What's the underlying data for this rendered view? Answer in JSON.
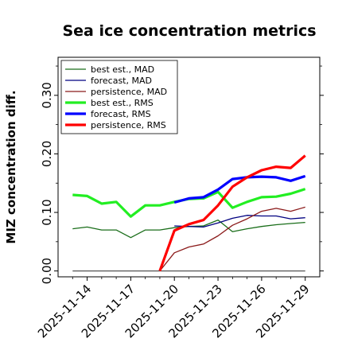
{
  "chart_data": {
    "type": "line",
    "title": "Sea ice concentration metrics",
    "xlabel": "",
    "ylabel": "MIZ concentration diff.",
    "ylim": [
      -0.01,
      0.365
    ],
    "yticks": [
      0.0,
      0.1,
      0.2,
      0.3
    ],
    "ytick_labels": [
      "0.00",
      "0.10",
      "0.20",
      "0.30"
    ],
    "xticks": [
      "2025-11-14",
      "2025-11-17",
      "2025-11-20",
      "2025-11-23",
      "2025-11-26",
      "2025-11-29"
    ],
    "highlighted_xtick": "2025-11-20",
    "highlight_color": "#228b22",
    "legend_position": "upper-left",
    "grid": false,
    "zero_line": {
      "y": 0.0,
      "color": "#555555"
    },
    "series": [
      {
        "name": "best est., MAD",
        "color": "#1a6e1a",
        "width": 1.3,
        "x": [
          "2025-11-13",
          "2025-11-14",
          "2025-11-15",
          "2025-11-16",
          "2025-11-17",
          "2025-11-18",
          "2025-11-19",
          "2025-11-20",
          "2025-11-21",
          "2025-11-22",
          "2025-11-23",
          "2025-11-24",
          "2025-11-25",
          "2025-11-26",
          "2025-11-27",
          "2025-11-28",
          "2025-11-29"
        ],
        "values": [
          0.072,
          0.075,
          0.07,
          0.07,
          0.057,
          0.07,
          0.07,
          0.074,
          0.076,
          0.077,
          0.087,
          0.067,
          0.072,
          0.076,
          0.079,
          0.081,
          0.083
        ]
      },
      {
        "name": "forecast,  MAD",
        "color": "#000080",
        "width": 1.3,
        "x": [
          "2025-11-20",
          "2025-11-21",
          "2025-11-22",
          "2025-11-23",
          "2025-11-24",
          "2025-11-25",
          "2025-11-26",
          "2025-11-27",
          "2025-11-28",
          "2025-11-29"
        ],
        "values": [
          0.077,
          0.076,
          0.075,
          0.082,
          0.09,
          0.095,
          0.094,
          0.094,
          0.089,
          0.091
        ]
      },
      {
        "name": "persistence, MAD",
        "color": "#8b1a1a",
        "width": 1.3,
        "x": [
          "2025-11-19",
          "2025-11-20",
          "2025-11-21",
          "2025-11-22",
          "2025-11-23",
          "2025-11-24",
          "2025-11-25",
          "2025-11-26",
          "2025-11-27",
          "2025-11-28",
          "2025-11-29"
        ],
        "values": [
          0.0,
          0.031,
          0.041,
          0.046,
          0.06,
          0.078,
          0.089,
          0.102,
          0.107,
          0.102,
          0.109
        ]
      },
      {
        "name": "best est., RMS",
        "color": "#22ee22",
        "width": 3.2,
        "x": [
          "2025-11-13",
          "2025-11-14",
          "2025-11-15",
          "2025-11-16",
          "2025-11-17",
          "2025-11-18",
          "2025-11-19",
          "2025-11-20",
          "2025-11-21",
          "2025-11-22",
          "2025-11-23",
          "2025-11-24",
          "2025-11-25",
          "2025-11-26",
          "2025-11-27",
          "2025-11-28",
          "2025-11-29"
        ],
        "values": [
          0.13,
          0.128,
          0.115,
          0.118,
          0.093,
          0.112,
          0.112,
          0.118,
          0.123,
          0.124,
          0.135,
          0.108,
          0.118,
          0.126,
          0.127,
          0.132,
          0.14
        ]
      },
      {
        "name": "forecast,  RMS",
        "color": "#0000ff",
        "width": 3.2,
        "x": [
          "2025-11-20",
          "2025-11-21",
          "2025-11-22",
          "2025-11-23",
          "2025-11-24",
          "2025-11-25",
          "2025-11-26",
          "2025-11-27",
          "2025-11-28",
          "2025-11-29"
        ],
        "values": [
          0.117,
          0.124,
          0.126,
          0.139,
          0.157,
          0.16,
          0.161,
          0.16,
          0.154,
          0.162
        ]
      },
      {
        "name": "persistence, RMS",
        "color": "#ff0000",
        "width": 3.2,
        "x": [
          "2025-11-19",
          "2025-11-20",
          "2025-11-21",
          "2025-11-22",
          "2025-11-23",
          "2025-11-24",
          "2025-11-25",
          "2025-11-26",
          "2025-11-27",
          "2025-11-28",
          "2025-11-29"
        ],
        "values": [
          0.0,
          0.069,
          0.08,
          0.087,
          0.112,
          0.144,
          0.16,
          0.172,
          0.178,
          0.176,
          0.197
        ]
      }
    ]
  }
}
